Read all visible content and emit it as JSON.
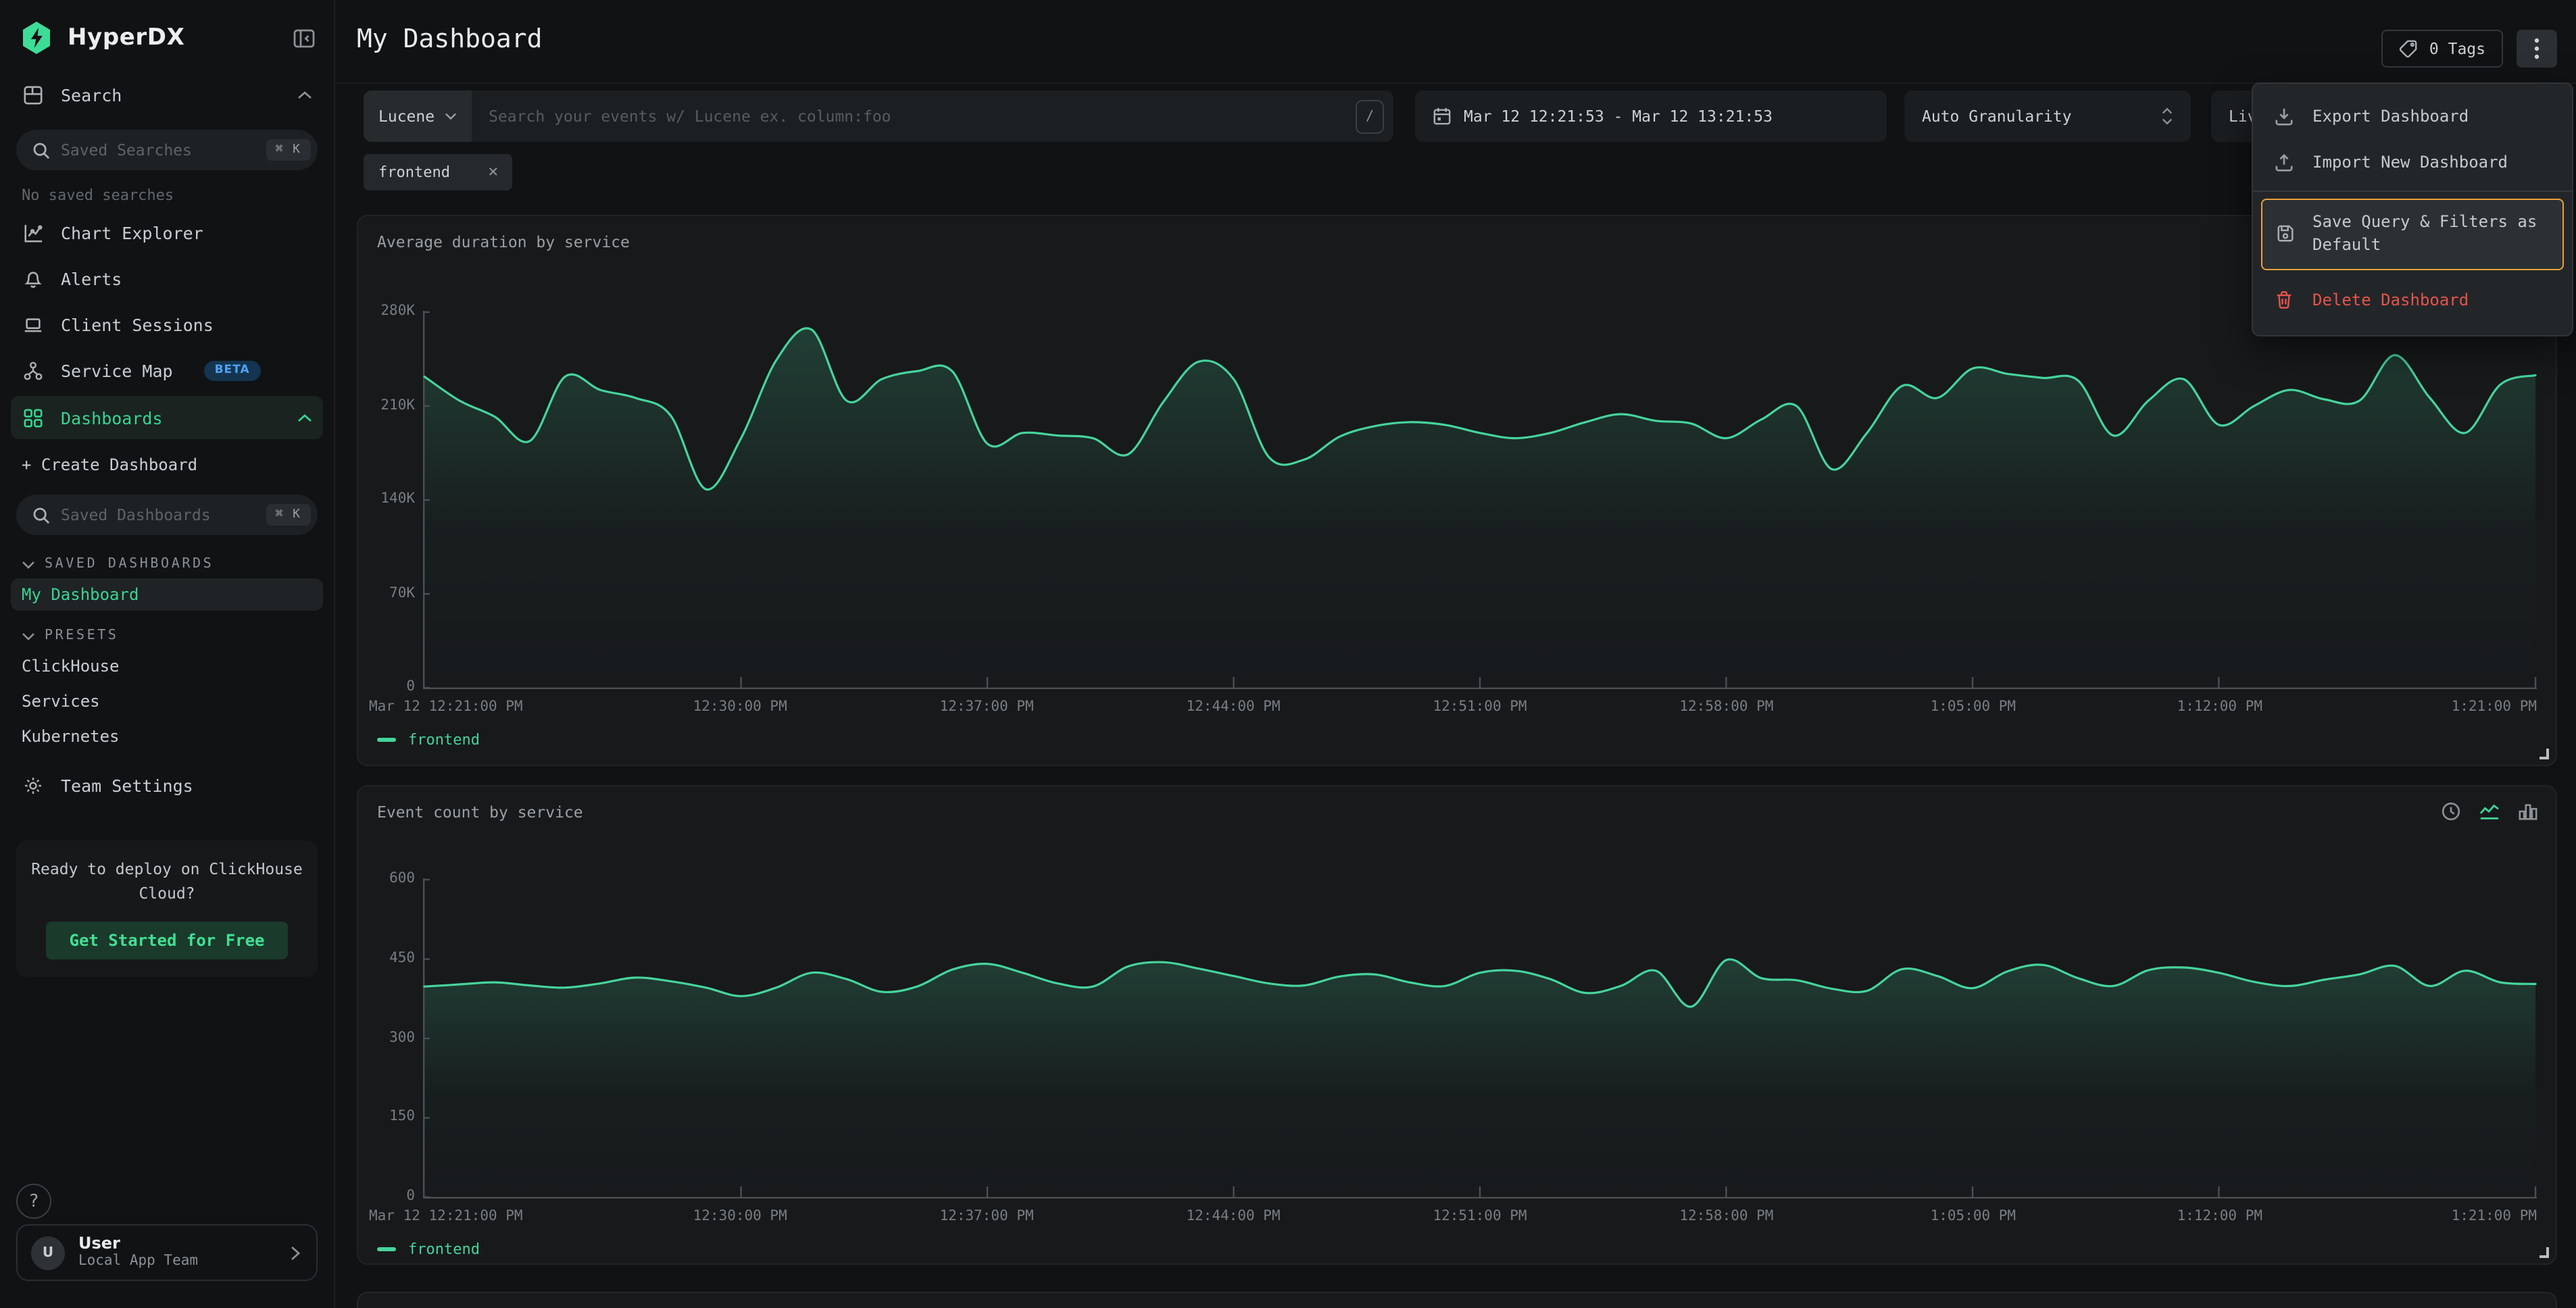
{
  "app": {
    "name": "HyperDX"
  },
  "colors": {
    "accent_green": "#46d49c",
    "active_nav_green": "#38d492",
    "highlight_orange": "#e8a23c",
    "danger_red": "#e5534b",
    "beta_blue": "#4da3f5",
    "panel_bg": "#17191b",
    "page_bg": "#101213"
  },
  "sidebar": {
    "nav": [
      {
        "label": "Search",
        "icon": "grid-window-icon"
      },
      {
        "label": "Chart Explorer",
        "icon": "chart-explorer-icon"
      },
      {
        "label": "Alerts",
        "icon": "bell-icon"
      },
      {
        "label": "Client Sessions",
        "icon": "laptop-icon"
      },
      {
        "label": "Service Map",
        "icon": "hierarchy-icon",
        "badge": "BETA"
      },
      {
        "label": "Dashboards",
        "icon": "dashboard-grid-icon",
        "active": true
      }
    ],
    "saved_searches_placeholder": "Saved Searches",
    "saved_dashboards_placeholder": "Saved Dashboards",
    "search_shortcut": "⌘ K",
    "no_saved_searches": "No saved searches",
    "create_dashboard": "+ Create Dashboard",
    "sections": {
      "saved": "SAVED DASHBOARDS",
      "presets": "PRESETS"
    },
    "saved_items": [
      {
        "label": "My Dashboard",
        "active": true
      }
    ],
    "preset_items": [
      "ClickHouse",
      "Services",
      "Kubernetes"
    ],
    "team_settings": "Team Settings",
    "promo": {
      "text": "Ready to deploy on ClickHouse Cloud?",
      "cta": "Get Started for Free"
    },
    "help_label": "?",
    "user": {
      "avatar": "U",
      "name": "User",
      "team": "Local App Team"
    }
  },
  "header": {
    "title": "My Dashboard",
    "tags_label": "0 Tags"
  },
  "filters": {
    "language": "Lucene",
    "search_placeholder": "Search your events w/ Lucene ex. column:foo",
    "slash_shortcut": "/",
    "date_range": "Mar 12 12:21:53 - Mar 12 13:21:53",
    "granularity": "Auto Granularity",
    "live_button": "Live",
    "filter_chip": "frontend"
  },
  "menu": {
    "items": [
      {
        "label": "Export Dashboard",
        "icon": "download-icon"
      },
      {
        "label": "Import New Dashboard",
        "icon": "upload-icon"
      },
      {
        "label": "Save Query & Filters as Default",
        "icon": "save-icon",
        "highlighted": true
      },
      {
        "label": "Delete Dashboard",
        "icon": "trash-icon",
        "danger": true
      }
    ]
  },
  "chart_data": [
    {
      "type": "line",
      "title": "Average duration by service",
      "legend_position": "bottom-left",
      "grid": false,
      "x_total_minutes": 60,
      "x_ticks": [
        {
          "label": "Mar 12 12:21:00 PM",
          "minute": 0
        },
        {
          "label": "12:30:00 PM",
          "minute": 9
        },
        {
          "label": "12:37:00 PM",
          "minute": 16
        },
        {
          "label": "12:44:00 PM",
          "minute": 23
        },
        {
          "label": "12:51:00 PM",
          "minute": 30
        },
        {
          "label": "12:58:00 PM",
          "minute": 37
        },
        {
          "label": "1:05:00 PM",
          "minute": 44
        },
        {
          "label": "1:12:00 PM",
          "minute": 51
        },
        {
          "label": "1:21:00 PM",
          "minute": 60
        }
      ],
      "y_ticks": [
        {
          "label": "0",
          "value": 0
        },
        {
          "label": "70K",
          "value": 70
        },
        {
          "label": "140K",
          "value": 140
        },
        {
          "label": "210K",
          "value": 210
        },
        {
          "label": "280K",
          "value": 280
        }
      ],
      "ylim": [
        0,
        280
      ],
      "values_unit": "thousands",
      "series": [
        {
          "name": "frontend",
          "color": "#46d49c",
          "values": [
            232,
            214,
            202,
            184,
            232,
            222,
            216,
            203,
            148,
            186,
            244,
            267,
            214,
            230,
            236,
            236,
            182,
            190,
            188,
            186,
            174,
            213,
            243,
            230,
            172,
            170,
            187,
            195,
            198,
            196,
            190,
            186,
            190,
            198,
            204,
            199,
            197,
            186,
            200,
            210,
            163,
            190,
            225,
            216,
            238,
            234,
            231,
            229,
            188,
            214,
            230,
            196,
            210,
            222,
            215,
            214,
            248,
            216,
            190,
            226,
            233
          ]
        }
      ]
    },
    {
      "type": "line",
      "title": "Event count by service",
      "legend_position": "bottom-left",
      "grid": false,
      "x_total_minutes": 60,
      "x_ticks": [
        {
          "label": "Mar 12 12:21:00 PM",
          "minute": 0
        },
        {
          "label": "12:30:00 PM",
          "minute": 9
        },
        {
          "label": "12:37:00 PM",
          "minute": 16
        },
        {
          "label": "12:44:00 PM",
          "minute": 23
        },
        {
          "label": "12:51:00 PM",
          "minute": 30
        },
        {
          "label": "12:58:00 PM",
          "minute": 37
        },
        {
          "label": "1:05:00 PM",
          "minute": 44
        },
        {
          "label": "1:12:00 PM",
          "minute": 51
        },
        {
          "label": "1:21:00 PM",
          "minute": 60
        }
      ],
      "y_ticks": [
        {
          "label": "0",
          "value": 0
        },
        {
          "label": "150",
          "value": 150
        },
        {
          "label": "300",
          "value": 300
        },
        {
          "label": "450",
          "value": 450
        },
        {
          "label": "600",
          "value": 600
        }
      ],
      "ylim": [
        0,
        600
      ],
      "tools": [
        {
          "name": "time-range-icon",
          "active": false
        },
        {
          "name": "line-chart-icon",
          "active": true
        },
        {
          "name": "bar-chart-icon",
          "active": false
        }
      ],
      "series": [
        {
          "name": "frontend",
          "color": "#46d49c",
          "values": [
            398,
            402,
            406,
            400,
            396,
            404,
            415,
            408,
            396,
            380,
            396,
            424,
            412,
            388,
            398,
            430,
            441,
            424,
            404,
            398,
            436,
            444,
            432,
            418,
            404,
            400,
            417,
            421,
            406,
            399,
            424,
            428,
            412,
            386,
            399,
            428,
            360,
            448,
            414,
            410,
            394,
            390,
            431,
            418,
            395,
            427,
            439,
            414,
            399,
            429,
            434,
            424,
            407,
            399,
            411,
            421,
            437,
            399,
            428,
            406,
            403
          ]
        }
      ]
    }
  ]
}
